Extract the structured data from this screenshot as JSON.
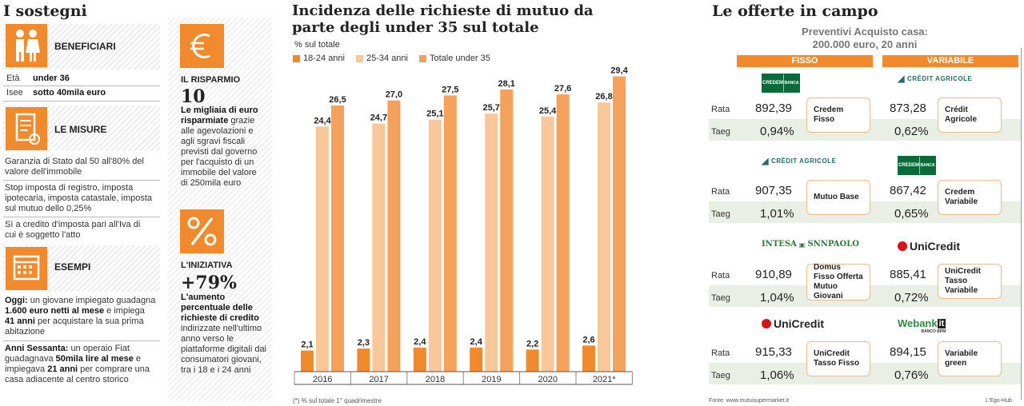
{
  "left": {
    "title": "I sostegni",
    "beneficiari": {
      "label": "BENEFICIARI",
      "eta_label": "Età",
      "eta_value": "under 36",
      "isee_label": "Isee",
      "isee_value": "sotto 40mila euro"
    },
    "misure": {
      "label": "LE MISURE",
      "item1": "Garanzia di Stato dal 50 all'80% del valore dell'immobile",
      "item2": "Stop imposta di registro, imposta ipotecaria, imposta catastale, imposta sul mutuo dello 0,25%",
      "item3": "Sì a credito d'imposta pari all'Iva di cui è soggetto l'atto"
    },
    "esempi": {
      "label": "ESEMPI",
      "ex1_lead": "Oggi:",
      "ex1_a": " un giovane impiegato guadagna ",
      "ex1_b": "1.600 euro netti al mese",
      "ex1_c": " e impiega ",
      "ex1_d": "41 anni",
      "ex1_e": " per acquistare la sua prima abitazione",
      "ex2_lead": "Anni Sessanta:",
      "ex2_a": " un operaio Fiat guadagnava ",
      "ex2_b": "50mila lire al mese",
      "ex2_c": " e impiegava ",
      "ex2_d": "21 anni",
      "ex2_e": " per comprare una casa adiacente al centro storico"
    },
    "risparmio": {
      "label": "IL RISPARMIO",
      "number": "10",
      "bold": "Le migliaia di euro risparmiate",
      "rest": " grazie alle agevolazioni e agli sgravi fiscali previsti dal governo per l'acquisto di un immobile del valore di 250mila euro"
    },
    "iniziativa": {
      "label": "L'INIZIATIVA",
      "number": "+79%",
      "bold": "L'aumento percentuale delle richieste di credito",
      "rest": " indirizzate nell'ultimo anno verso le piattaforme digitali dai consumatori giovani, tra i 18 e i 24 anni"
    }
  },
  "chart_data": {
    "type": "bar",
    "title": "Incidenza delle richieste di mutuo da parte degli under 35 sul totale",
    "ylabel": "% sul totale",
    "categories": [
      "2016",
      "2017",
      "2018",
      "2019",
      "2020",
      "2021*"
    ],
    "series": [
      {
        "name": "18-24 anni",
        "values": [
          2.1,
          2.3,
          2.4,
          2.4,
          2.2,
          2.6
        ],
        "labels": [
          "2,1",
          "2,3",
          "2,4",
          "2,4",
          "2,2",
          "2,6"
        ],
        "color": "#f08a2c"
      },
      {
        "name": "25-34 anni",
        "values": [
          24.4,
          24.7,
          25.1,
          25.7,
          25.4,
          26.8
        ],
        "labels": [
          "24,4",
          "24,7",
          "25,1",
          "25,7",
          "25,4",
          "26,8"
        ],
        "color": "#f8c89a"
      },
      {
        "name": "Totale under 35",
        "values": [
          26.5,
          27.0,
          27.5,
          28.1,
          27.6,
          29.4
        ],
        "labels": [
          "26,5",
          "27,0",
          "27,5",
          "28,1",
          "27,6",
          "29,4"
        ],
        "color": "#f4a15c"
      }
    ],
    "ylim": [
      0,
      30
    ],
    "grid": false,
    "legend_placement": "top-left",
    "footnote": "(*) % sul totale 1° quadrimestre"
  },
  "right": {
    "title": "Le offerte in campo",
    "subtitle_line1": "Preventivi Acquisto casa:",
    "subtitle_line2": "200.000 euro, 20 anni",
    "col_fisso": "FISSO",
    "col_variabile": "VARIABILE",
    "rata_label": "Rata",
    "taeg_label": "Taeg",
    "rows": [
      {
        "fisso": {
          "logo": "CREDEM",
          "logo_sub": "BANCA",
          "rata": "892,39",
          "taeg": "0,94%",
          "product": "Credem Fisso"
        },
        "variabile": {
          "logo": "CRÉDIT AGRICOLE",
          "rata": "873,28",
          "taeg": "0,62%",
          "product": "Crédit Agricole"
        }
      },
      {
        "fisso": {
          "logo": "CRÉDIT AGRICOLE",
          "rata": "907,35",
          "taeg": "1,01%",
          "product": "Mutuo Base"
        },
        "variabile": {
          "logo": "CREDEM",
          "logo_sub": "BANCA",
          "rata": "867,42",
          "taeg": "0,65%",
          "product": "Credem Variabile"
        }
      },
      {
        "fisso": {
          "logo": "INTESA",
          "logo_b": "SNNPAOLO",
          "rata": "910,89",
          "taeg": "1,04%",
          "product": "Domus Fisso Offerta Mutuo Giovani"
        },
        "variabile": {
          "logo": "UniCredit",
          "rata": "885,41",
          "taeg": "0,72%",
          "product": "UniCredit Tasso Variabile"
        }
      },
      {
        "fisso": {
          "logo": "UniCredit",
          "rata": "915,33",
          "taeg": "1,06%",
          "product": "UniCredit Tasso Fisso"
        },
        "variabile": {
          "logo": "Webank",
          "logo_b": "it",
          "logo_sub": "BANCO BPM",
          "rata": "894,15",
          "taeg": "0,76%",
          "product": "Variabile green"
        }
      }
    ],
    "source": "Fonte: www.mutuisupermarket.it",
    "credit": "L'Ego-Hub"
  },
  "colors": {
    "orange": "#f08a2c",
    "light_orange": "#f8c89a",
    "mid_orange": "#f4a15c",
    "band": "#e9efe4",
    "credem": "#0a6b3a",
    "unicredit": "#d4141b"
  }
}
